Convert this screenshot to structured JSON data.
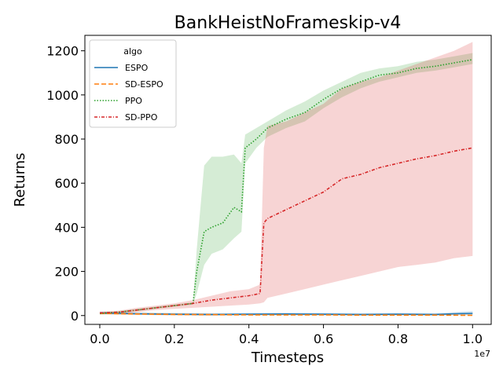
{
  "chart_data": {
    "type": "line",
    "title": "BankHeistNoFrameskip-v4",
    "xlabel": "Timesteps",
    "ylabel": "Returns",
    "x_offset_label": "1e7",
    "xlim": [
      -0.04,
      1.05
    ],
    "ylim": [
      -40,
      1270
    ],
    "x_ticks": [
      0.0,
      0.2,
      0.4,
      0.6,
      0.8,
      1.0
    ],
    "x_tick_labels": [
      "0.0",
      "0.2",
      "0.4",
      "0.6",
      "0.8",
      "1.0"
    ],
    "y_ticks": [
      0,
      200,
      400,
      600,
      800,
      1000,
      1200
    ],
    "y_tick_labels": [
      "0",
      "200",
      "400",
      "600",
      "800",
      "1000",
      "1200"
    ],
    "legend_title": "algo",
    "legend_position": "upper-left",
    "series": [
      {
        "name": "ESPO",
        "color": "#1f77b4",
        "dash": "solid",
        "x": [
          0.0,
          0.1,
          0.2,
          0.3,
          0.4,
          0.5,
          0.6,
          0.7,
          0.8,
          0.9,
          0.95,
          1.0
        ],
        "y": [
          12,
          8,
          6,
          5,
          6,
          7,
          6,
          5,
          6,
          5,
          8,
          10
        ],
        "lower": [
          6,
          3,
          1,
          0,
          1,
          2,
          1,
          0,
          1,
          0,
          2,
          2
        ],
        "upper": [
          18,
          14,
          12,
          11,
          12,
          13,
          12,
          11,
          12,
          11,
          15,
          20
        ]
      },
      {
        "name": "SD-ESPO",
        "color": "#ff7f0e",
        "dash": "dashed",
        "x": [
          0.0,
          0.1,
          0.2,
          0.3,
          0.4,
          0.5,
          0.6,
          0.7,
          0.8,
          0.9,
          1.0
        ],
        "y": [
          10,
          7,
          5,
          4,
          3,
          3,
          3,
          2,
          2,
          2,
          1
        ],
        "lower": [
          5,
          3,
          1,
          0,
          0,
          0,
          0,
          0,
          0,
          0,
          0
        ],
        "upper": [
          15,
          12,
          10,
          9,
          8,
          8,
          8,
          7,
          7,
          7,
          6
        ]
      },
      {
        "name": "PPO",
        "color": "#2ca02c",
        "dash": "dotted",
        "x": [
          0.0,
          0.05,
          0.1,
          0.15,
          0.2,
          0.25,
          0.26,
          0.28,
          0.3,
          0.33,
          0.36,
          0.38,
          0.39,
          0.42,
          0.45,
          0.5,
          0.55,
          0.6,
          0.65,
          0.7,
          0.75,
          0.8,
          0.85,
          0.9,
          0.95,
          1.0
        ],
        "y": [
          10,
          15,
          25,
          35,
          45,
          55,
          200,
          380,
          400,
          420,
          490,
          470,
          760,
          800,
          850,
          890,
          920,
          980,
          1030,
          1060,
          1090,
          1100,
          1120,
          1130,
          1145,
          1160
        ],
        "lower": [
          5,
          10,
          20,
          30,
          40,
          50,
          100,
          230,
          280,
          300,
          350,
          380,
          690,
          760,
          810,
          850,
          880,
          940,
          990,
          1030,
          1060,
          1080,
          1100,
          1110,
          1125,
          1140
        ],
        "upper": [
          15,
          20,
          30,
          40,
          50,
          60,
          300,
          680,
          720,
          720,
          730,
          690,
          820,
          850,
          880,
          930,
          970,
          1020,
          1060,
          1100,
          1120,
          1130,
          1150,
          1160,
          1175,
          1190
        ]
      },
      {
        "name": "SD-PPO",
        "color": "#d62728",
        "dash": "dashdot",
        "x": [
          0.0,
          0.05,
          0.1,
          0.15,
          0.2,
          0.25,
          0.3,
          0.35,
          0.4,
          0.43,
          0.44,
          0.45,
          0.5,
          0.55,
          0.6,
          0.65,
          0.7,
          0.75,
          0.8,
          0.85,
          0.9,
          0.95,
          1.0
        ],
        "y": [
          12,
          15,
          25,
          35,
          45,
          55,
          70,
          80,
          90,
          100,
          420,
          440,
          480,
          520,
          560,
          620,
          640,
          670,
          690,
          710,
          725,
          745,
          760
        ],
        "lower": [
          6,
          8,
          15,
          25,
          30,
          35,
          40,
          45,
          50,
          55,
          60,
          80,
          100,
          120,
          140,
          160,
          180,
          200,
          220,
          230,
          240,
          260,
          270
        ],
        "upper": [
          18,
          22,
          35,
          45,
          55,
          70,
          90,
          110,
          120,
          140,
          760,
          860,
          880,
          920,
          960,
          1030,
          1060,
          1080,
          1110,
          1140,
          1170,
          1200,
          1240
        ]
      }
    ]
  }
}
